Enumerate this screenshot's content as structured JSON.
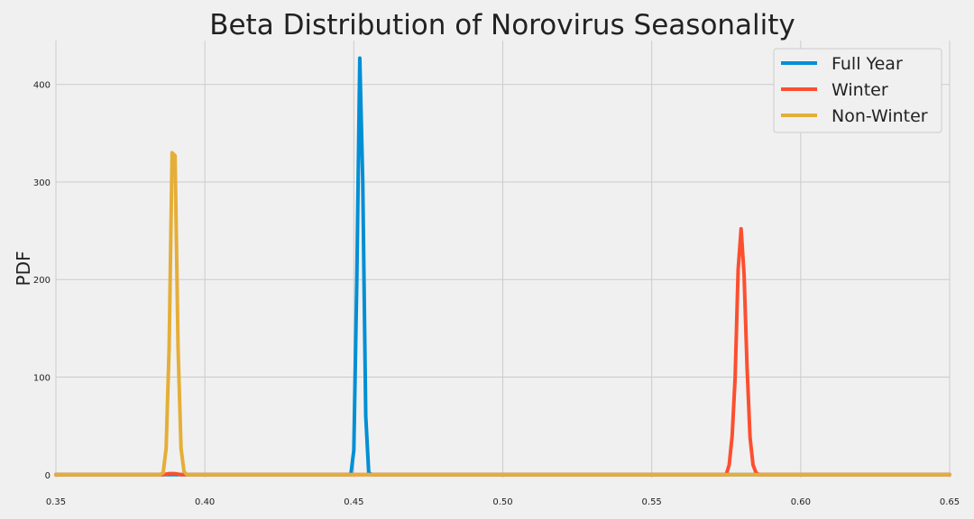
{
  "chart_data": {
    "type": "line",
    "title": "Beta Distribution of Norovirus Seasonality",
    "xlabel": "",
    "ylabel": "PDF",
    "xlim": [
      0.35,
      0.65
    ],
    "ylim": [
      -3,
      445
    ],
    "grid": true,
    "legend_position": "top-right",
    "x_ticks": [
      {
        "value": 0.35,
        "label": "0.35"
      },
      {
        "value": 0.4,
        "label": "0.40"
      },
      {
        "value": 0.45,
        "label": "0.45"
      },
      {
        "value": 0.5,
        "label": "0.50"
      },
      {
        "value": 0.55,
        "label": "0.55"
      },
      {
        "value": 0.6,
        "label": "0.60"
      },
      {
        "value": 0.65,
        "label": "0.65"
      }
    ],
    "y_ticks": [
      {
        "value": 0,
        "label": "0"
      },
      {
        "value": 100,
        "label": "100"
      },
      {
        "value": 200,
        "label": "200"
      },
      {
        "value": 300,
        "label": "300"
      },
      {
        "value": 400,
        "label": "400"
      }
    ],
    "series": [
      {
        "name": "Full Year",
        "color": "#008fd5",
        "points": [
          [
            0.35,
            0
          ],
          [
            0.449,
            0
          ],
          [
            0.45,
            25
          ],
          [
            0.451,
            200
          ],
          [
            0.452,
            427
          ],
          [
            0.453,
            300
          ],
          [
            0.454,
            60
          ],
          [
            0.455,
            2
          ],
          [
            0.456,
            0
          ],
          [
            0.65,
            0
          ]
        ]
      },
      {
        "name": "Winter",
        "color": "#fc4f30",
        "points": [
          [
            0.35,
            0
          ],
          [
            0.386,
            0
          ],
          [
            0.388,
            1
          ],
          [
            0.39,
            1
          ],
          [
            0.392,
            0
          ],
          [
            0.575,
            0
          ],
          [
            0.576,
            10
          ],
          [
            0.577,
            40
          ],
          [
            0.578,
            100
          ],
          [
            0.579,
            210
          ],
          [
            0.58,
            252
          ],
          [
            0.581,
            205
          ],
          [
            0.582,
            110
          ],
          [
            0.583,
            38
          ],
          [
            0.584,
            10
          ],
          [
            0.585,
            2
          ],
          [
            0.586,
            0
          ],
          [
            0.65,
            0
          ]
        ]
      },
      {
        "name": "Non-Winter",
        "color": "#e5ae38",
        "points": [
          [
            0.35,
            0
          ],
          [
            0.385,
            0
          ],
          [
            0.386,
            2
          ],
          [
            0.387,
            27
          ],
          [
            0.388,
            130
          ],
          [
            0.389,
            330
          ],
          [
            0.39,
            327
          ],
          [
            0.391,
            130
          ],
          [
            0.392,
            27
          ],
          [
            0.393,
            3
          ],
          [
            0.394,
            0
          ],
          [
            0.65,
            0
          ]
        ]
      }
    ]
  }
}
